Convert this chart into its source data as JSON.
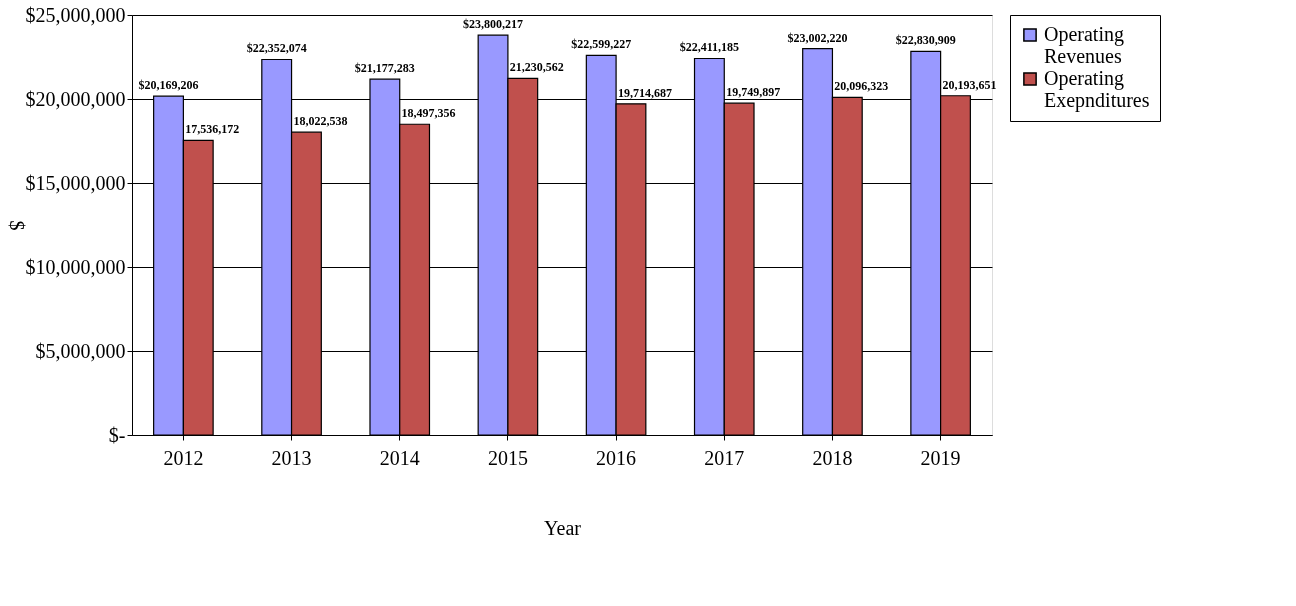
{
  "chart_data": {
    "type": "bar",
    "xlabel": "Year",
    "ylabel": "$",
    "categories": [
      "2012",
      "2013",
      "2014",
      "2015",
      "2016",
      "2017",
      "2018",
      "2019"
    ],
    "series": [
      {
        "name": "Operating Revenues",
        "color": "#9999ff",
        "values": [
          20169206,
          22352074,
          21177283,
          23800217,
          22599227,
          22411185,
          23002220,
          22830909
        ],
        "value_labels": [
          "$20,169,206",
          "$22,352,074",
          "$21,177,283",
          "$23,800,217",
          "$22,599,227",
          "$22,411,185",
          "$23,002,220",
          "$22,830,909"
        ]
      },
      {
        "name": "Operating Exepnditures",
        "color": "#c0504d",
        "values": [
          17536172,
          18022538,
          18497356,
          21230562,
          19714687,
          19749897,
          20096323,
          20193651
        ],
        "value_labels": [
          "17,536,172",
          "18,022,538",
          "18,497,356",
          "21,230,562",
          "19,714,687",
          "19,749,897",
          "20,096,323",
          "20,193,651"
        ]
      }
    ],
    "ylim": [
      0,
      25000000
    ],
    "yticks": [
      {
        "value": 0,
        "label": "$-"
      },
      {
        "value": 5000000,
        "label": "$5,000,000"
      },
      {
        "value": 10000000,
        "label": "$10,000,000"
      },
      {
        "value": 15000000,
        "label": "$15,000,000"
      },
      {
        "value": 20000000,
        "label": "$20,000,000"
      },
      {
        "value": 25000000,
        "label": "$25,000,000"
      }
    ],
    "grid": "y",
    "legend": "right"
  }
}
